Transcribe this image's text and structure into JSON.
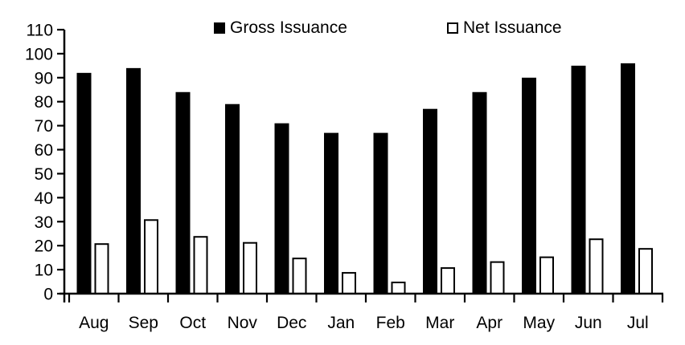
{
  "page": {
    "background": "#ffffff"
  },
  "legend": {
    "items": [
      {
        "label": "Gross Issuance",
        "swatch": "filled-black-square"
      },
      {
        "label": "Net Issuance",
        "swatch": "outlined-white-square"
      }
    ]
  },
  "chart_data": {
    "type": "bar",
    "title": "",
    "xlabel": "",
    "ylabel": "",
    "categories": [
      "Aug",
      "Sep",
      "Oct",
      "Nov",
      "Dec",
      "Jan",
      "Feb",
      "Mar",
      "Apr",
      "May",
      "Jun",
      "Jul"
    ],
    "series": [
      {
        "name": "Gross Issuance",
        "values": [
          92,
          94,
          84,
          79,
          71,
          67,
          67,
          77,
          84,
          90,
          95,
          96
        ],
        "fill": "#000000",
        "stroke": "#000000"
      },
      {
        "name": "Net Issuance",
        "values": [
          21,
          31,
          24,
          21.5,
          15,
          9,
          5,
          11,
          13.5,
          15.5,
          23,
          19
        ],
        "fill": "#ffffff",
        "stroke": "#000000"
      }
    ],
    "ylim": [
      0,
      110
    ],
    "ytick_step": 10,
    "yticks": [
      0,
      10,
      20,
      30,
      40,
      50,
      60,
      70,
      80,
      90,
      100,
      110
    ],
    "grid": false,
    "legend_position": "top",
    "axis_color": "#000000"
  }
}
